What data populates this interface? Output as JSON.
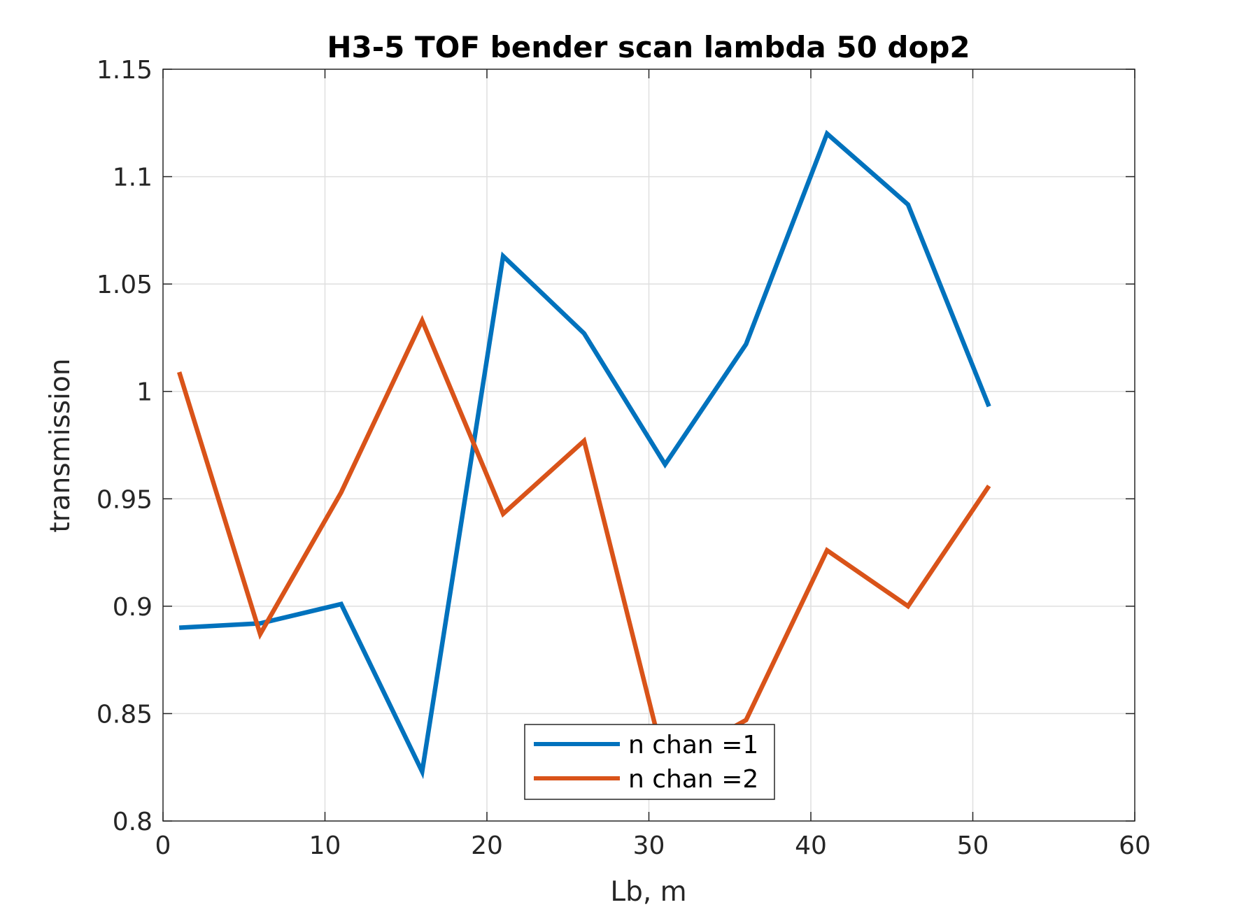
{
  "chart_data": {
    "type": "line",
    "title": "H3-5 TOF bender scan lambda 50 dop2",
    "xlabel": "Lb, m",
    "ylabel": "transmission",
    "xlim": [
      0,
      60
    ],
    "ylim": [
      0.8,
      1.15
    ],
    "xticks": [
      0,
      10,
      20,
      30,
      40,
      50,
      60
    ],
    "xtick_labels": [
      "0",
      "10",
      "20",
      "30",
      "40",
      "50",
      "60"
    ],
    "yticks": [
      0.8,
      0.85,
      0.9,
      0.95,
      1.0,
      1.05,
      1.1,
      1.15
    ],
    "ytick_labels": [
      "0.8",
      "0.85",
      "0.9",
      "0.95",
      "1",
      "1.05",
      "1.1",
      "1.15"
    ],
    "grid": true,
    "legend_position": "bottom-center",
    "x": [
      1,
      6,
      11,
      16,
      21,
      26,
      31,
      36,
      41,
      46,
      51
    ],
    "series": [
      {
        "name": "n chan =1",
        "color": "#0072bd",
        "values": [
          0.89,
          0.892,
          0.901,
          0.823,
          1.063,
          1.027,
          0.966,
          1.022,
          1.12,
          1.087,
          0.993
        ]
      },
      {
        "name": "n chan =2",
        "color": "#d95319",
        "values": [
          1.009,
          0.887,
          0.953,
          1.033,
          0.943,
          0.977,
          0.826,
          0.847,
          0.926,
          0.9,
          0.956
        ]
      }
    ]
  }
}
